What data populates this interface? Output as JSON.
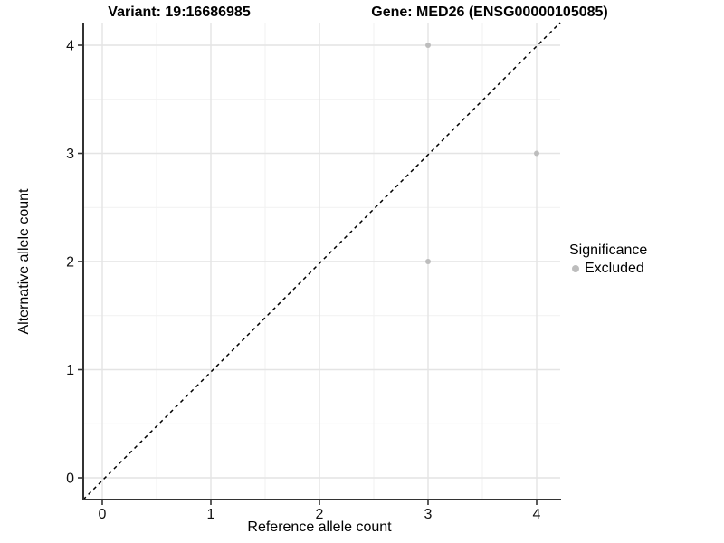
{
  "chart_data": {
    "type": "scatter",
    "titles": {
      "left": "Variant: 19:16686985",
      "right": "Gene: MED26 (ENSG00000105085)"
    },
    "xlabel": "Reference allele count",
    "ylabel": "Alternative allele count",
    "xlim": [
      -0.2,
      4.2
    ],
    "ylim": [
      -0.2,
      4.2
    ],
    "x_ticks": [
      0,
      1,
      2,
      3,
      4
    ],
    "y_ticks": [
      0,
      1,
      2,
      3,
      4
    ],
    "x_minor_ticks": [
      0.5,
      1.5,
      2.5,
      3.5
    ],
    "y_minor_ticks": [
      0.5,
      1.5,
      2.5,
      3.5
    ],
    "grid": "major+minor",
    "reference_line": {
      "type": "identity y=x",
      "style": "dashed",
      "color": "#000000"
    },
    "series": [
      {
        "name": "Excluded",
        "color": "#bdbdbd",
        "marker": "circle",
        "points": [
          [
            3,
            4
          ],
          [
            4,
            3
          ],
          [
            3,
            2
          ]
        ]
      }
    ],
    "legend": {
      "title": "Significance",
      "position": "right",
      "entries": [
        {
          "label": "Excluded",
          "color": "#bdbdbd"
        }
      ]
    },
    "colors": {
      "axis_line": "#333333",
      "tick_label": "#111111",
      "grid_major": "#e4e4e4",
      "grid_minor": "#f1f1f1",
      "point": "#bdbdbd"
    }
  }
}
